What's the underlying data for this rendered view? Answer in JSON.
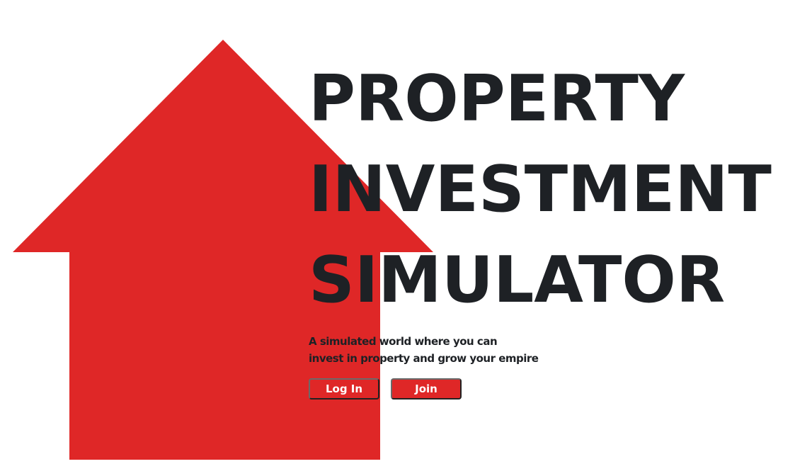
{
  "hero": {
    "title_lines": [
      "PROPERTY",
      "INVESTMENT",
      "SIMULATOR"
    ],
    "tagline_lines": [
      "A simulated world where you can",
      "invest in property and grow your empire"
    ]
  },
  "actions": {
    "login_label": "Log In",
    "join_label": "Join"
  },
  "colors": {
    "accent": "#df2727",
    "text": "#1e2125",
    "background": "#ffffff"
  },
  "icons": {
    "background": "house-arrow-icon"
  }
}
